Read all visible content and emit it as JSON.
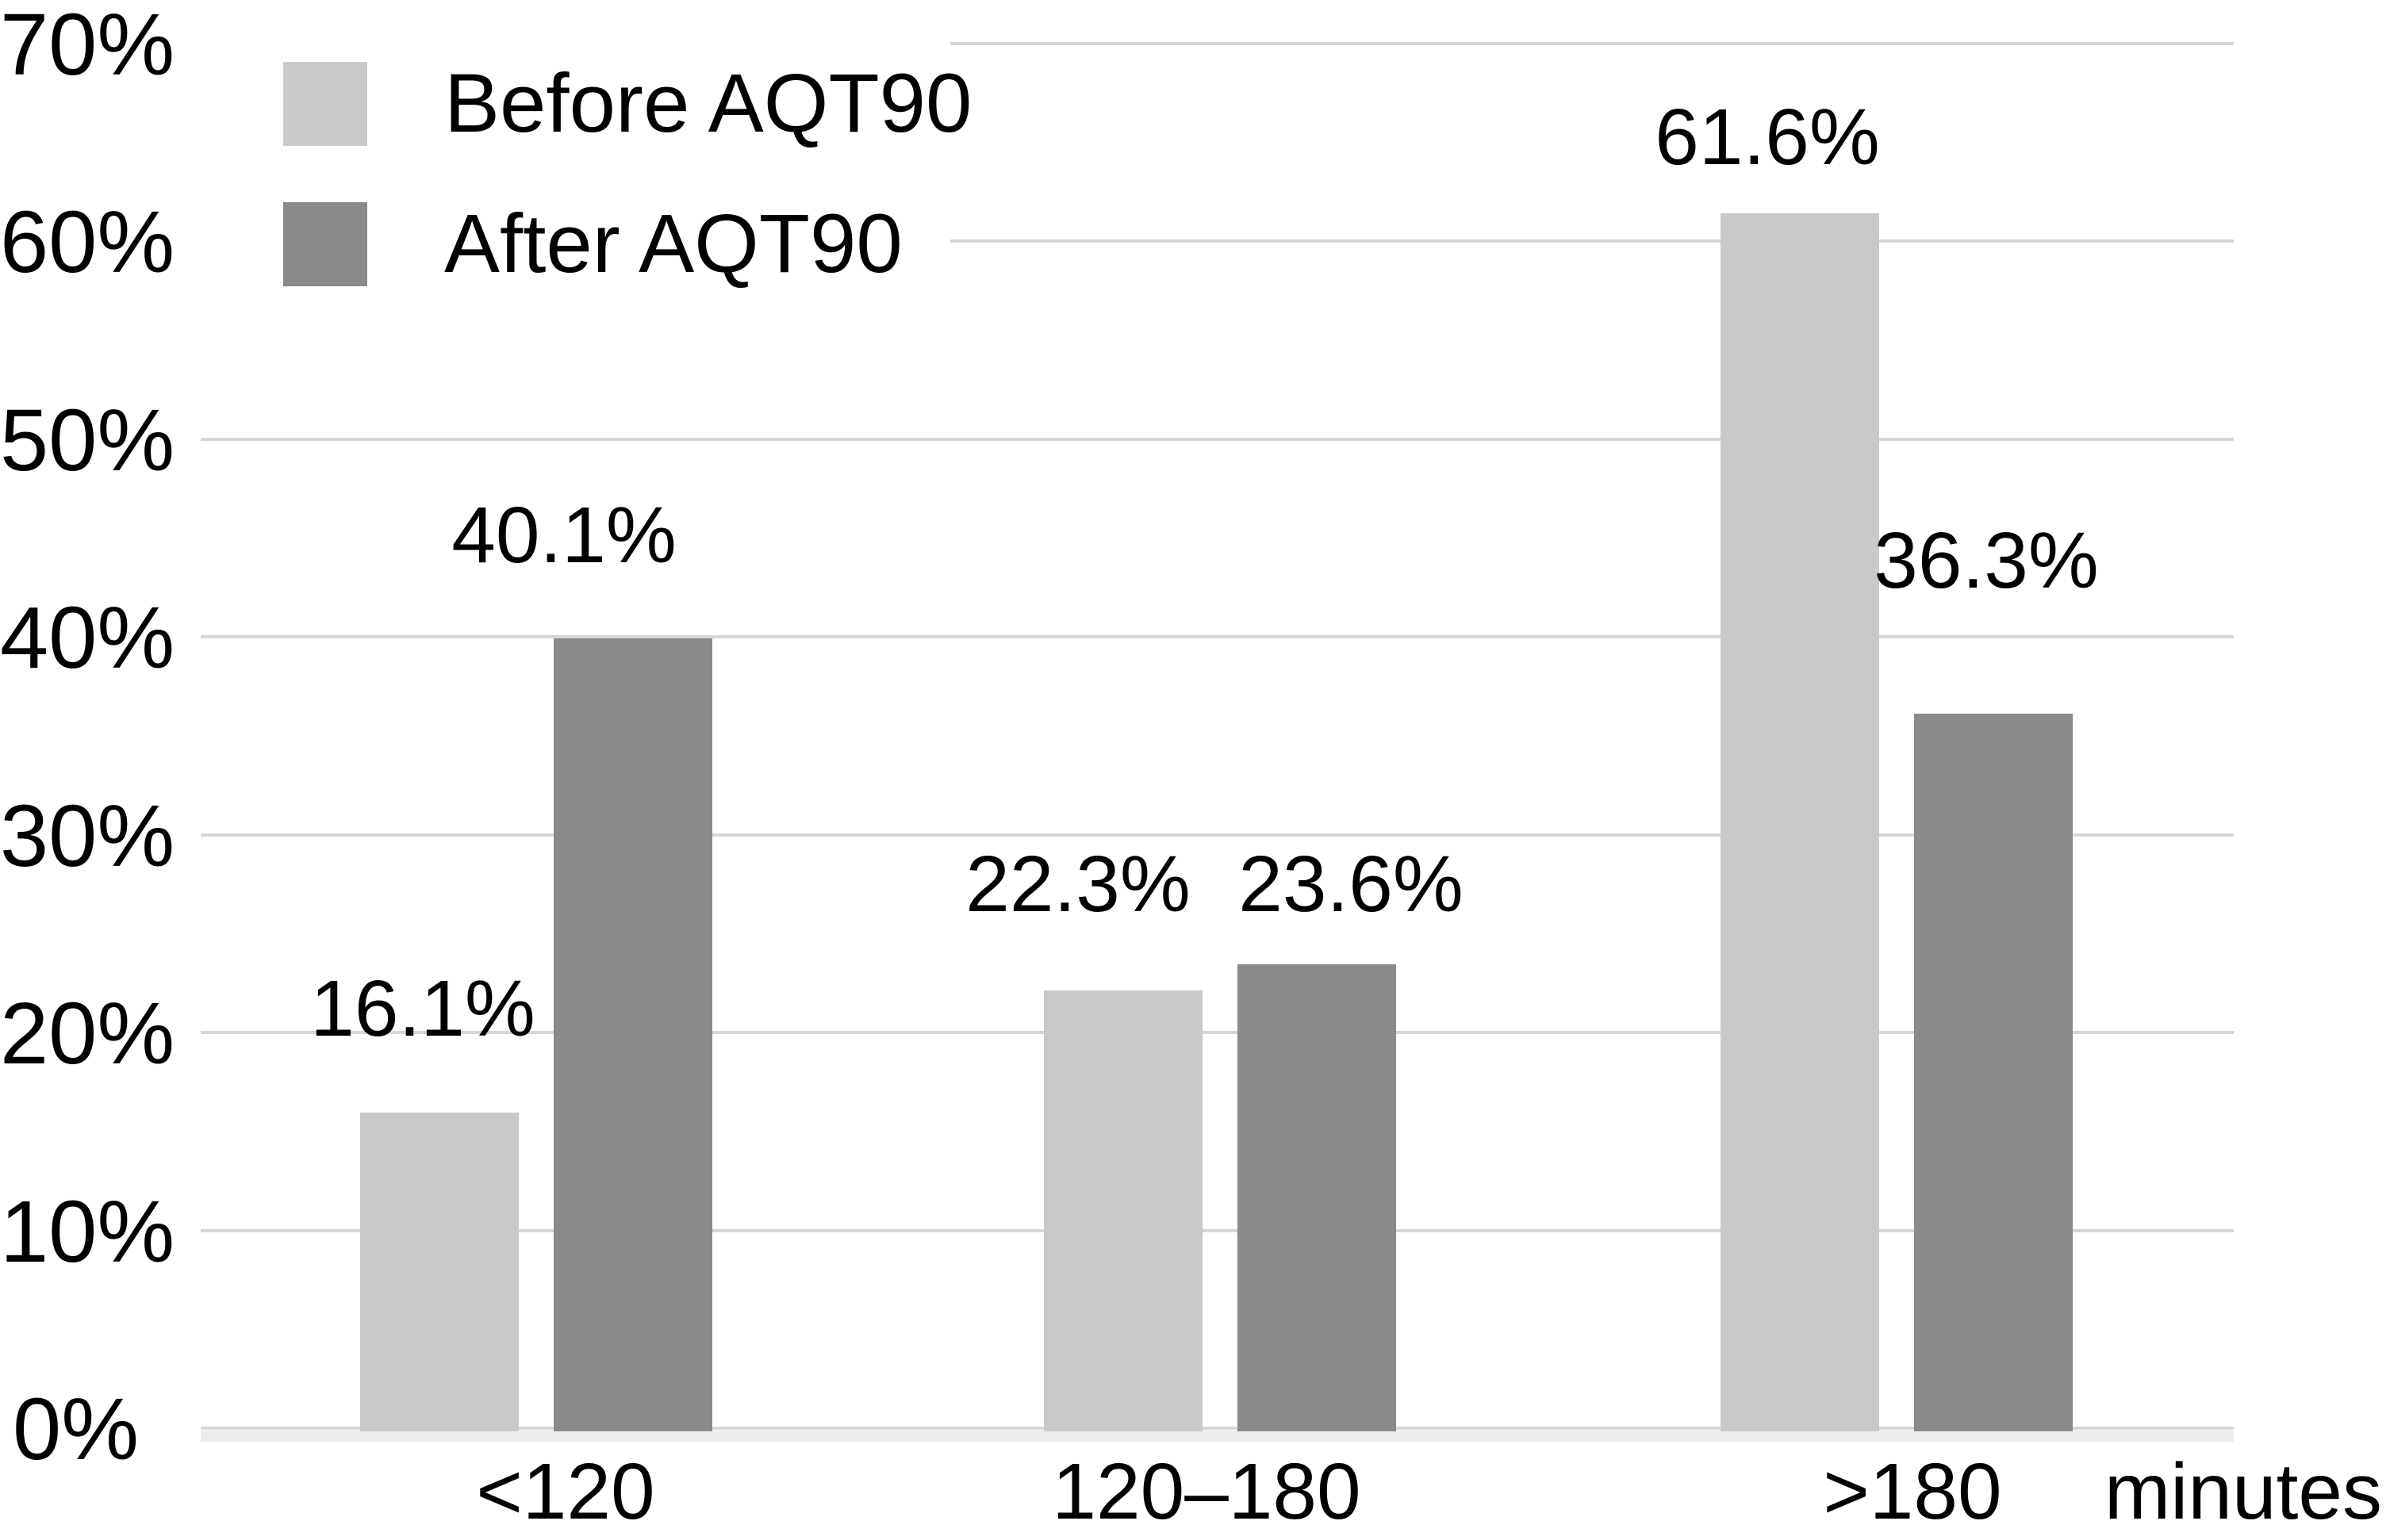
{
  "figure": {
    "background": "#ffffff",
    "text_color": "#000000",
    "gridline_color": "#d6d6d6",
    "baseline_band_color": "#ececec"
  },
  "chart_data": {
    "type": "bar",
    "title": "",
    "categories": [
      "<120",
      "120–180",
      ">180"
    ],
    "series": [
      {
        "name": "Before AQT90",
        "color": "#c9c9c9",
        "values": [
          16.1,
          22.3,
          61.6
        ],
        "data_labels": [
          "16.1%",
          "22.3%",
          "61.6%"
        ]
      },
      {
        "name": "After AQT90",
        "color": "#8a8a8a",
        "values": [
          40.1,
          23.6,
          36.3
        ],
        "data_labels": [
          "40.1%",
          "23.6%",
          "36.3%"
        ]
      }
    ],
    "xlabel": "minutes",
    "ylabel": "",
    "ylim": [
      0,
      70
    ],
    "y_ticks": [
      "0%",
      "10%",
      "20%",
      "30%",
      "40%",
      "50%",
      "60%",
      "70%"
    ],
    "grid": true,
    "legend_position": "top-left",
    "value_labels_shown": true
  }
}
